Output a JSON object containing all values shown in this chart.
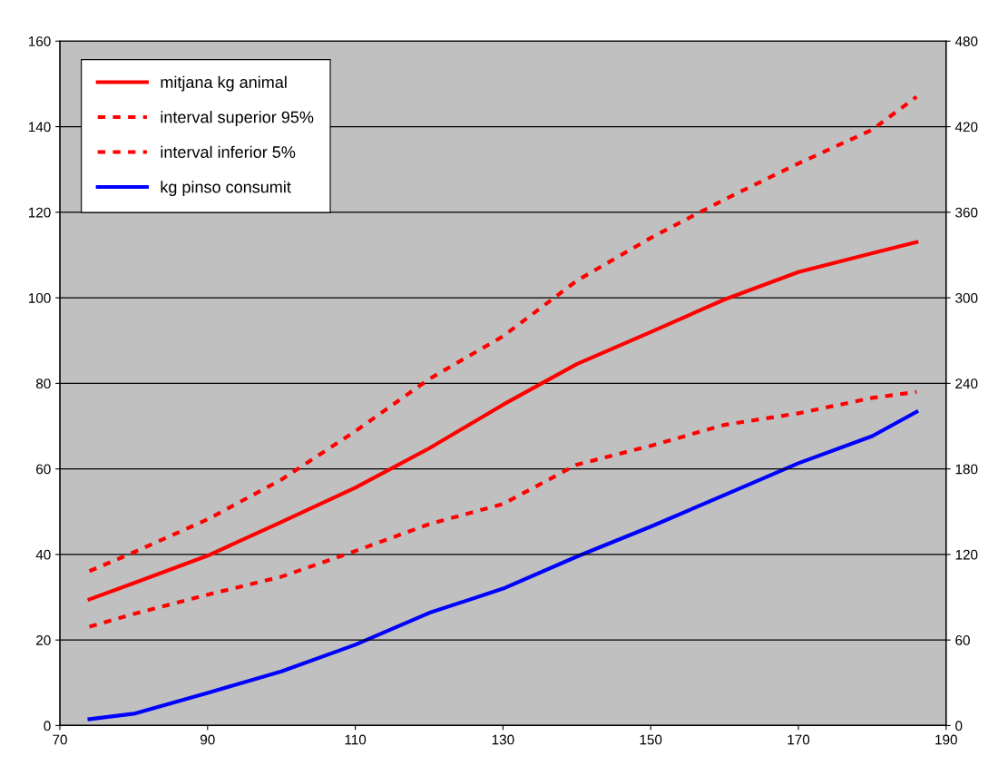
{
  "chart_data": {
    "type": "line",
    "x": [
      74,
      80,
      90,
      100,
      110,
      120,
      130,
      140,
      150,
      160,
      170,
      180,
      186
    ],
    "series": [
      {
        "name": "mitjana kg animal",
        "color": "#ff0000",
        "line_style": "solid",
        "values": [
          29.5,
          33.3,
          39.7,
          47.6,
          55.6,
          64.8,
          75,
          84.5,
          92,
          99.6,
          106,
          110.4,
          113
        ]
      },
      {
        "name": "interval superior 95%",
        "color": "#ff0000",
        "line_style": "dashed",
        "values": [
          36.1,
          40.5,
          48.2,
          57.5,
          68.8,
          81,
          91,
          104,
          114,
          123,
          131.4,
          139.3,
          147
        ]
      },
      {
        "name": "interval inferior 5%",
        "color": "#ff0000",
        "line_style": "dashed",
        "values": [
          23.1,
          26.1,
          30.6,
          34.8,
          40.8,
          47.1,
          51.8,
          61,
          65.4,
          70.3,
          73,
          76.6,
          78
        ]
      },
      {
        "name": "kg pinso consumit",
        "color": "#0000ff",
        "line_style": "solid",
        "axis": "y2",
        "values": [
          4.5,
          8.3,
          22.9,
          38,
          56.7,
          79,
          96,
          118.5,
          139.5,
          161.7,
          184,
          203,
          220
        ]
      }
    ],
    "xlim": [
      70,
      190
    ],
    "xticks": [
      70,
      90,
      110,
      130,
      150,
      170,
      190
    ],
    "ylim": [
      0,
      160
    ],
    "yticks": [
      0,
      20,
      40,
      60,
      80,
      100,
      120,
      140,
      160
    ],
    "y2lim": [
      0,
      480
    ],
    "y2ticks": [
      0,
      60,
      120,
      180,
      240,
      300,
      360,
      420,
      480
    ],
    "grid": "y",
    "legend": "top left",
    "marker": "none"
  }
}
